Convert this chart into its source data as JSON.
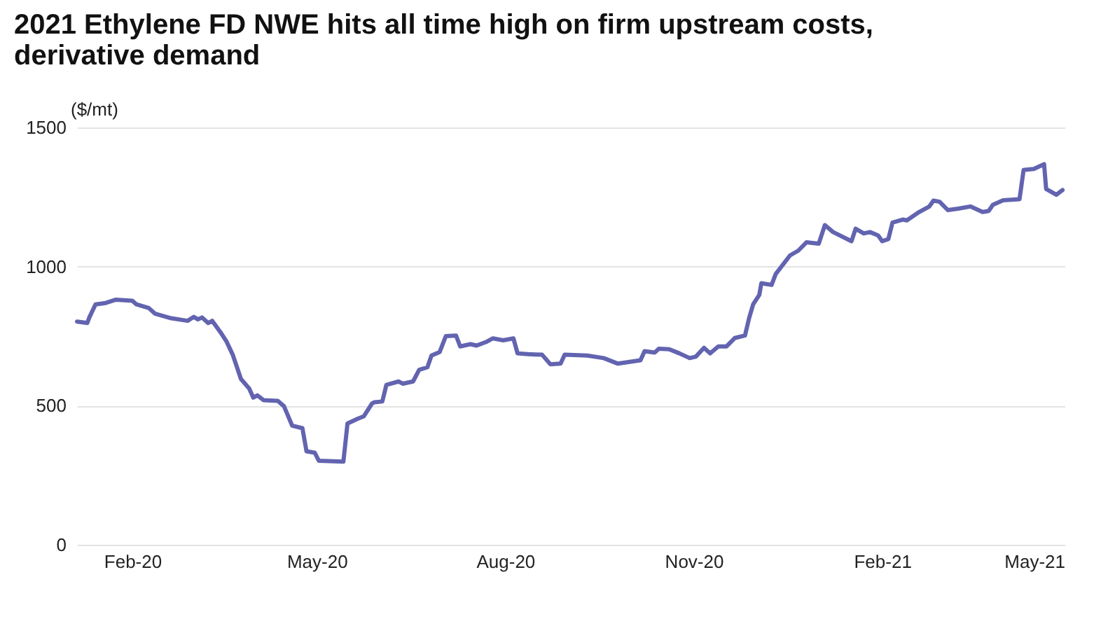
{
  "chart_data": {
    "type": "line",
    "title": [
      "2021 Ethylene FD NWE hits all time high on firm upstream costs,",
      "derivative demand"
    ],
    "ylabel": "($/mt)",
    "x": [
      "2020-01-05",
      "2020-01-10",
      "2020-01-11",
      "2020-01-14",
      "2020-01-19",
      "2020-01-24",
      "2020-02-01",
      "2020-02-03",
      "2020-02-09",
      "2020-02-12",
      "2020-02-20",
      "2020-02-28",
      "2020-03-02",
      "2020-03-04",
      "2020-03-06",
      "2020-03-09",
      "2020-03-11",
      "2020-03-15",
      "2020-03-18",
      "2020-03-21",
      "2020-03-25",
      "2020-03-29",
      "2020-03-31",
      "2020-04-02",
      "2020-04-05",
      "2020-04-12",
      "2020-04-15",
      "2020-04-19",
      "2020-04-24",
      "2020-04-26",
      "2020-04-30",
      "2020-05-02",
      "2020-05-14",
      "2020-05-16",
      "2020-05-21",
      "2020-05-24",
      "2020-05-28",
      "2020-05-29",
      "2020-06-02",
      "2020-06-04",
      "2020-06-10",
      "2020-06-12",
      "2020-06-17",
      "2020-06-20",
      "2020-06-24",
      "2020-06-26",
      "2020-06-30",
      "2020-07-03",
      "2020-07-08",
      "2020-07-10",
      "2020-07-15",
      "2020-07-18",
      "2020-07-23",
      "2020-07-26",
      "2020-07-31",
      "2020-08-05",
      "2020-08-07",
      "2020-08-12",
      "2020-08-19",
      "2020-08-23",
      "2020-08-28",
      "2020-08-30",
      "2020-09-10",
      "2020-09-18",
      "2020-09-25",
      "2020-10-06",
      "2020-10-08",
      "2020-10-13",
      "2020-10-15",
      "2020-10-20",
      "2020-10-25",
      "2020-10-30",
      "2020-11-02",
      "2020-11-06",
      "2020-11-09",
      "2020-11-13",
      "2020-11-17",
      "2020-11-21",
      "2020-11-26",
      "2020-11-28",
      "2020-11-30",
      "2020-12-03",
      "2020-12-04",
      "2020-12-09",
      "2020-12-11",
      "2020-12-18",
      "2020-12-22",
      "2020-12-26",
      "2021-01-01",
      "2021-01-04",
      "2021-01-08",
      "2021-01-17",
      "2021-01-19",
      "2021-01-23",
      "2021-01-26",
      "2021-01-30",
      "2021-02-01",
      "2021-02-04",
      "2021-02-06",
      "2021-02-11",
      "2021-02-13",
      "2021-02-19",
      "2021-02-24",
      "2021-02-26",
      "2021-03-01",
      "2021-03-05",
      "2021-03-10",
      "2021-03-16",
      "2021-03-22",
      "2021-03-25",
      "2021-03-27",
      "2021-04-01",
      "2021-04-09",
      "2021-04-11",
      "2021-04-16",
      "2021-04-21",
      "2021-04-22",
      "2021-04-27",
      "2021-04-30"
    ],
    "series": [
      {
        "color": "#6264b0",
        "values": [
          802,
          797,
          817,
          864,
          869,
          881,
          877,
          864,
          851,
          831,
          814,
          805,
          819,
          810,
          817,
          797,
          805,
          764,
          730,
          683,
          596,
          562,
          529,
          537,
          520,
          517,
          498,
          428,
          419,
          336,
          331,
          302,
          299,
          436,
          453,
          462,
          508,
          512,
          515,
          575,
          587,
          579,
          587,
          629,
          638,
          680,
          693,
          750,
          752,
          713,
          721,
          716,
          730,
          742,
          735,
          742,
          688,
          685,
          683,
          649,
          651,
          683,
          680,
          671,
          651,
          663,
          696,
          691,
          705,
          703,
          688,
          671,
          676,
          708,
          688,
          713,
          713,
          743,
          752,
          814,
          864,
          898,
          940,
          934,
          973,
          1040,
          1057,
          1087,
          1082,
          1149,
          1124,
          1091,
          1136,
          1119,
          1124,
          1112,
          1091,
          1099,
          1158,
          1169,
          1166,
          1196,
          1216,
          1237,
          1233,
          1203,
          1208,
          1216,
          1196,
          1200,
          1222,
          1238,
          1242,
          1347,
          1351,
          1368,
          1279,
          1258,
          1275
        ]
      }
    ],
    "xlim": [
      "2020-01-05",
      "2021-05-01"
    ],
    "xticks": [
      {
        "value": "2020-02-01",
        "label": "Feb-20"
      },
      {
        "value": "2020-05-01",
        "label": "May-20"
      },
      {
        "value": "2020-08-01",
        "label": "Aug-20"
      },
      {
        "value": "2020-11-01",
        "label": "Nov-20"
      },
      {
        "value": "2021-02-01",
        "label": "Feb-21"
      },
      {
        "value": "2021-05-01",
        "label": "May-21"
      }
    ],
    "ylim": [
      0,
      1500
    ],
    "yticks": [
      0,
      500,
      1000,
      1500
    ],
    "grid": "y"
  }
}
